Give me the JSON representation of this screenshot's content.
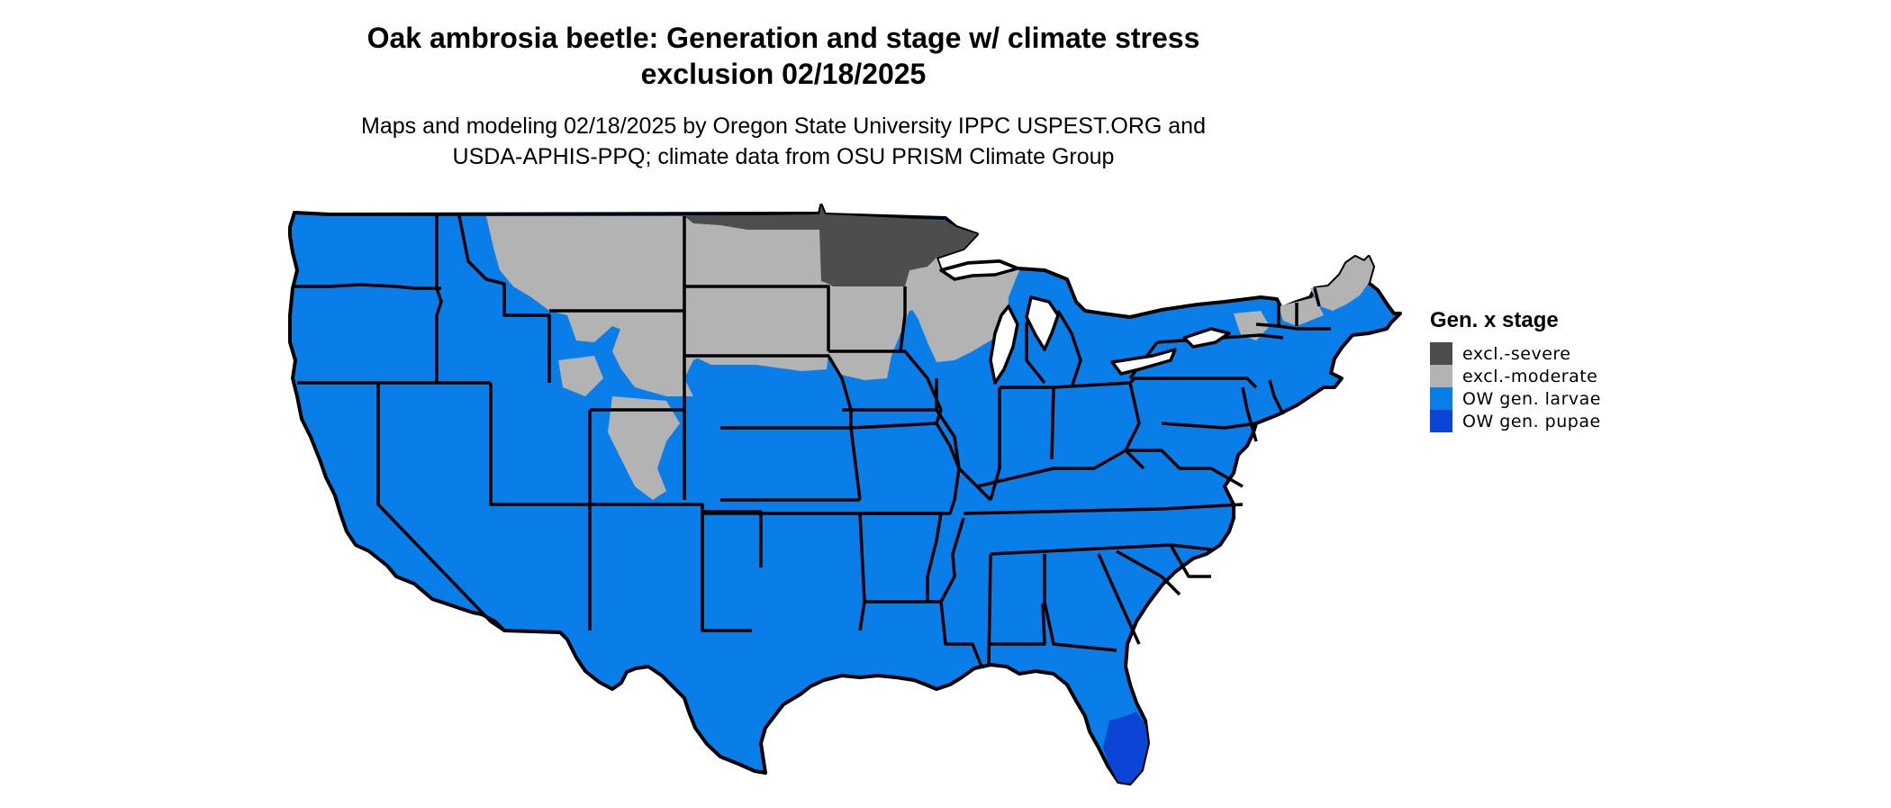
{
  "title": {
    "line1": "Oak ambrosia beetle: Generation and stage w/ climate stress",
    "line2": "exclusion 02/18/2025"
  },
  "subtitle": {
    "line1": "Maps and modeling 02/18/2025 by Oregon State University IPPC USPEST.ORG and",
    "line2": "USDA-APHIS-PPQ; climate data from OSU PRISM Climate Group"
  },
  "legend": {
    "title": "Gen. x stage",
    "items": [
      {
        "label": "excl.-severe",
        "color": "#4d4d4d"
      },
      {
        "label": "excl.-moderate",
        "color": "#b3b3b3"
      },
      {
        "label": "OW gen. larvae",
        "color": "#0a7ee8"
      },
      {
        "label": "OW gen. pupae",
        "color": "#0a45d6"
      }
    ]
  },
  "colors": {
    "severe": "#4d4d4d",
    "moderate": "#b3b3b3",
    "larvae": "#0a7ee8",
    "pupae": "#0a45d6",
    "state_border": "#000000"
  }
}
